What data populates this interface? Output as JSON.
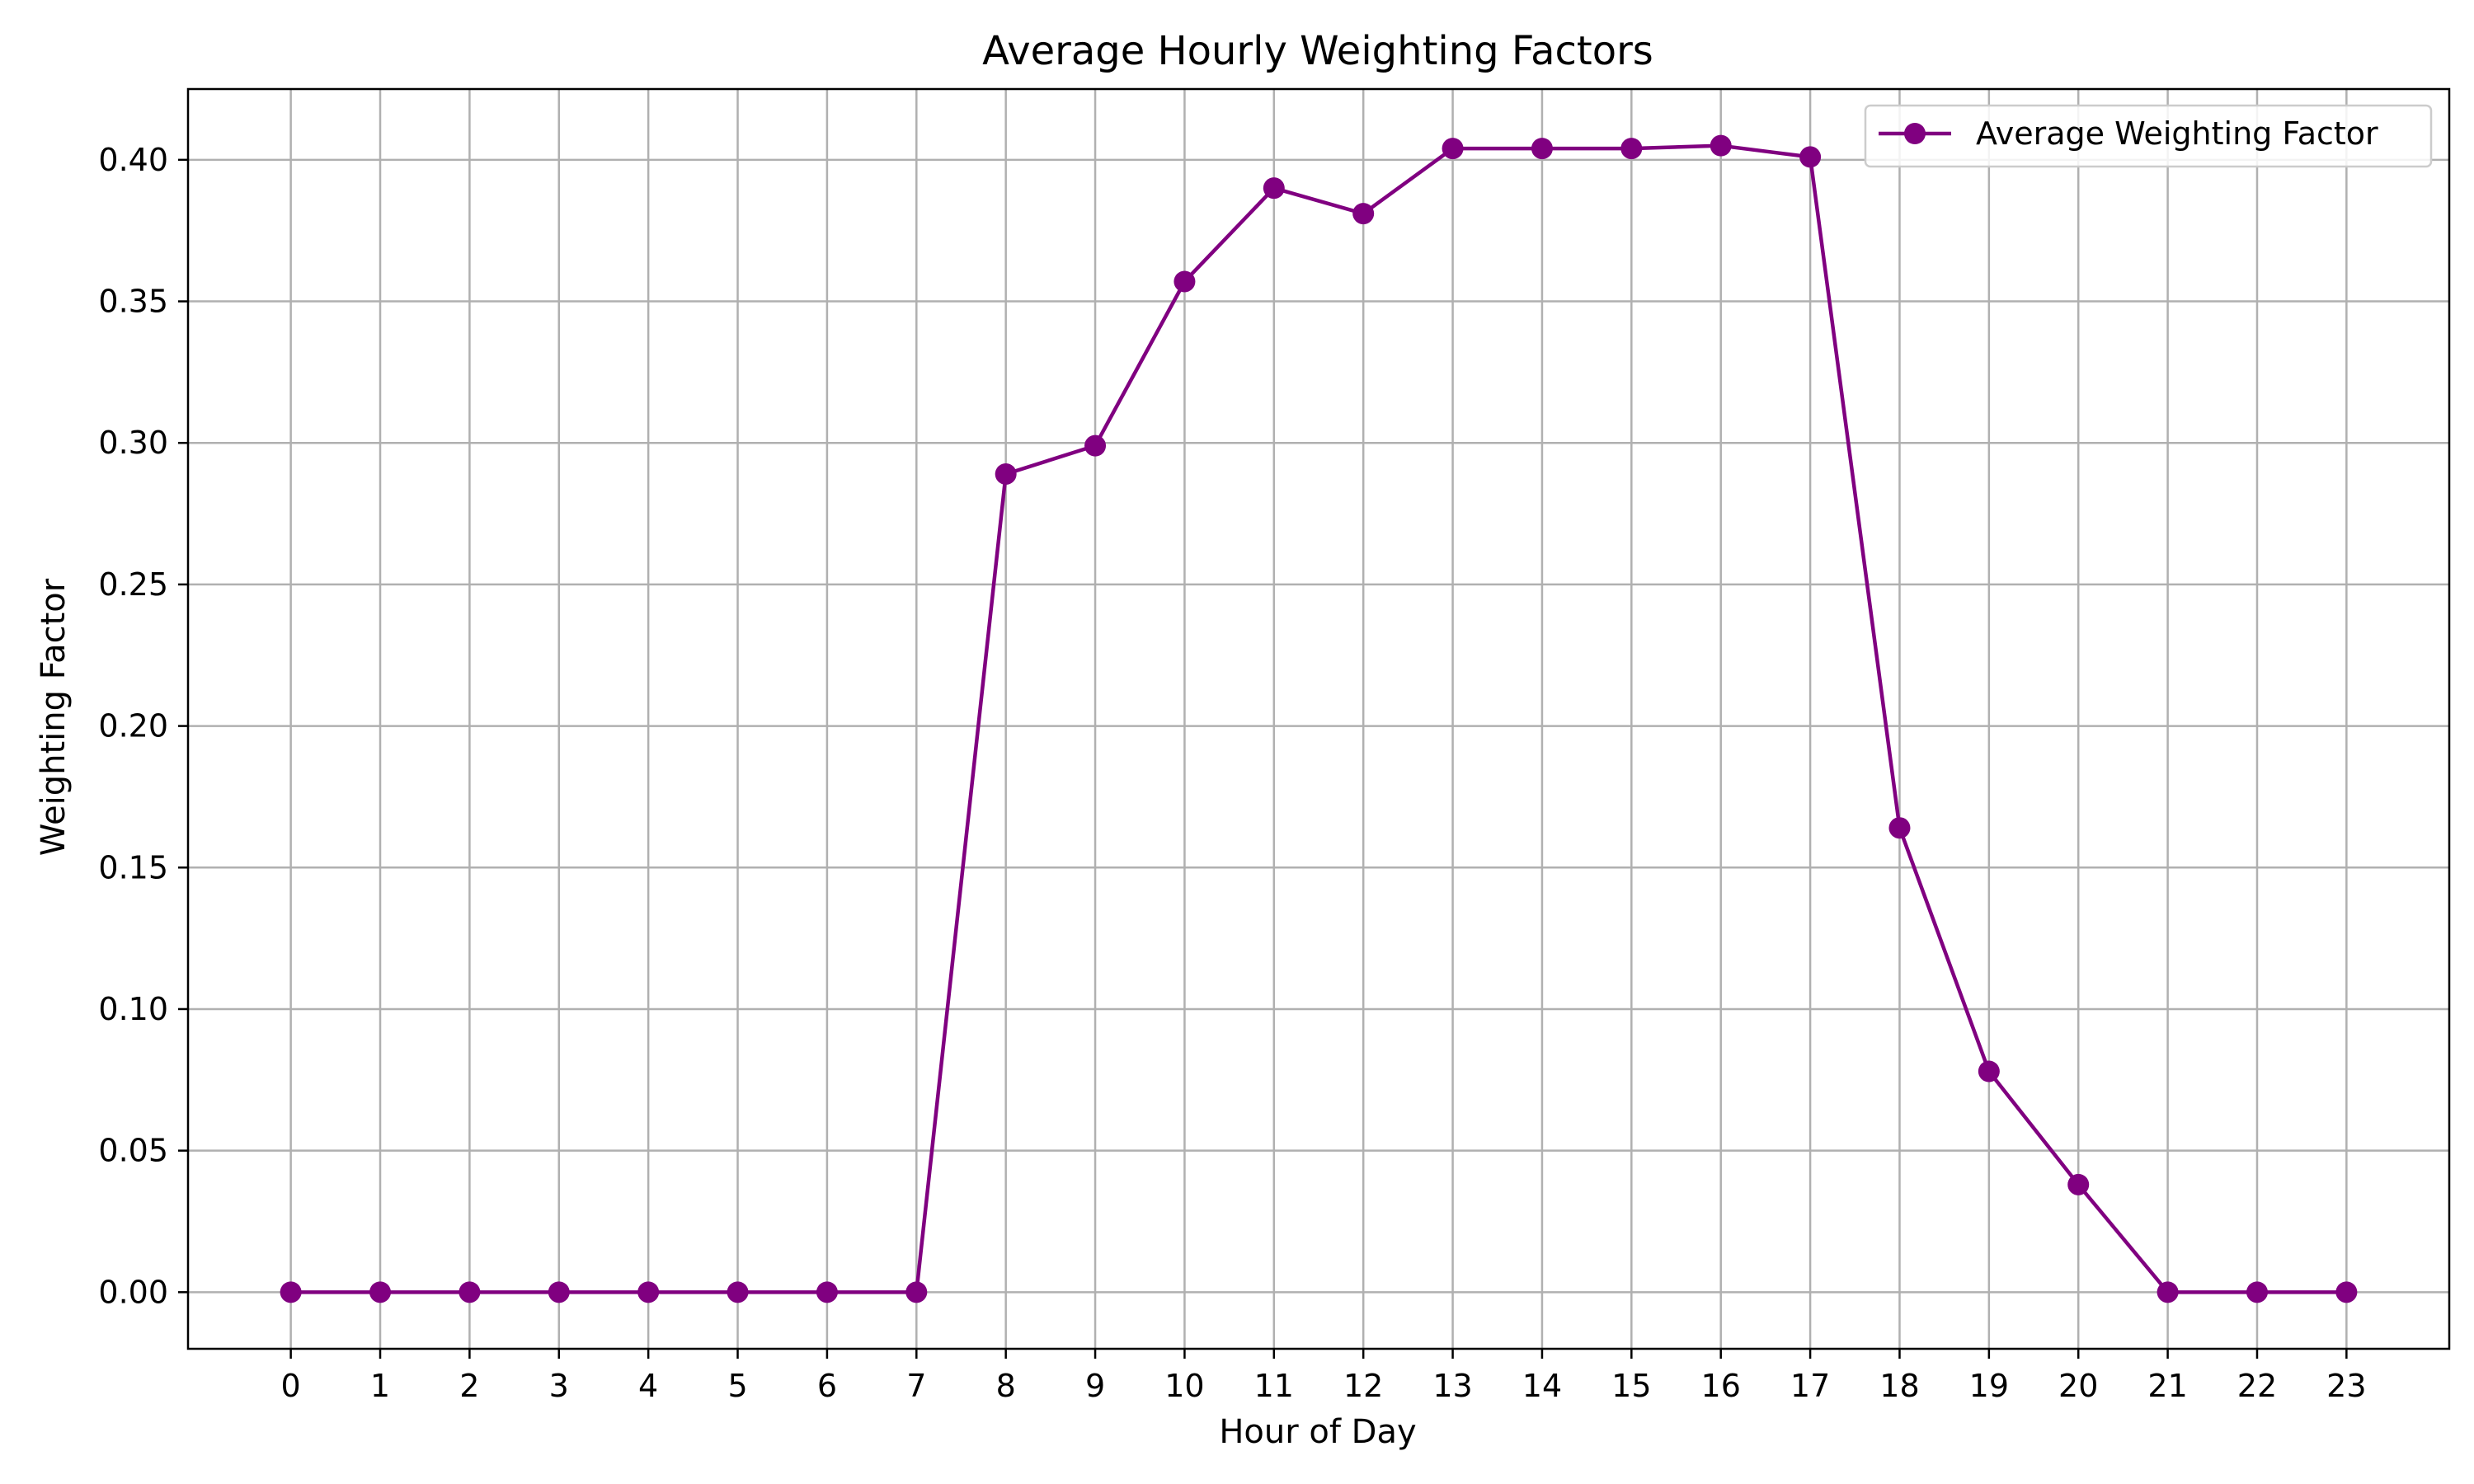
{
  "chart_data": {
    "type": "line",
    "title": "Average Hourly Weighting Factors",
    "xlabel": "Hour of Day",
    "ylabel": "Weighting Factor",
    "x": [
      0,
      1,
      2,
      3,
      4,
      5,
      6,
      7,
      8,
      9,
      10,
      11,
      12,
      13,
      14,
      15,
      16,
      17,
      18,
      19,
      20,
      21,
      22,
      23
    ],
    "xticks": [
      "0",
      "1",
      "2",
      "3",
      "4",
      "5",
      "6",
      "7",
      "8",
      "9",
      "10",
      "11",
      "12",
      "13",
      "14",
      "15",
      "16",
      "17",
      "18",
      "19",
      "20",
      "21",
      "22",
      "23"
    ],
    "yticks": [
      0.0,
      0.05,
      0.1,
      0.15,
      0.2,
      0.25,
      0.3,
      0.35,
      0.4
    ],
    "yticklabels": [
      "0.00",
      "0.05",
      "0.10",
      "0.15",
      "0.20",
      "0.25",
      "0.30",
      "0.35",
      "0.40"
    ],
    "xlim": [
      -1.15,
      24.15
    ],
    "ylim": [
      -0.02,
      0.425
    ],
    "grid": true,
    "legend_position": "top-right",
    "series": [
      {
        "name": "Average Weighting Factor",
        "color": "#800080",
        "marker": "circle",
        "values": [
          0,
          0,
          0,
          0,
          0,
          0,
          0,
          0,
          0.289,
          0.299,
          0.357,
          0.39,
          0.381,
          0.404,
          0.404,
          0.404,
          0.405,
          0.401,
          0.164,
          0.078,
          0.038,
          0,
          0,
          0
        ]
      }
    ]
  }
}
